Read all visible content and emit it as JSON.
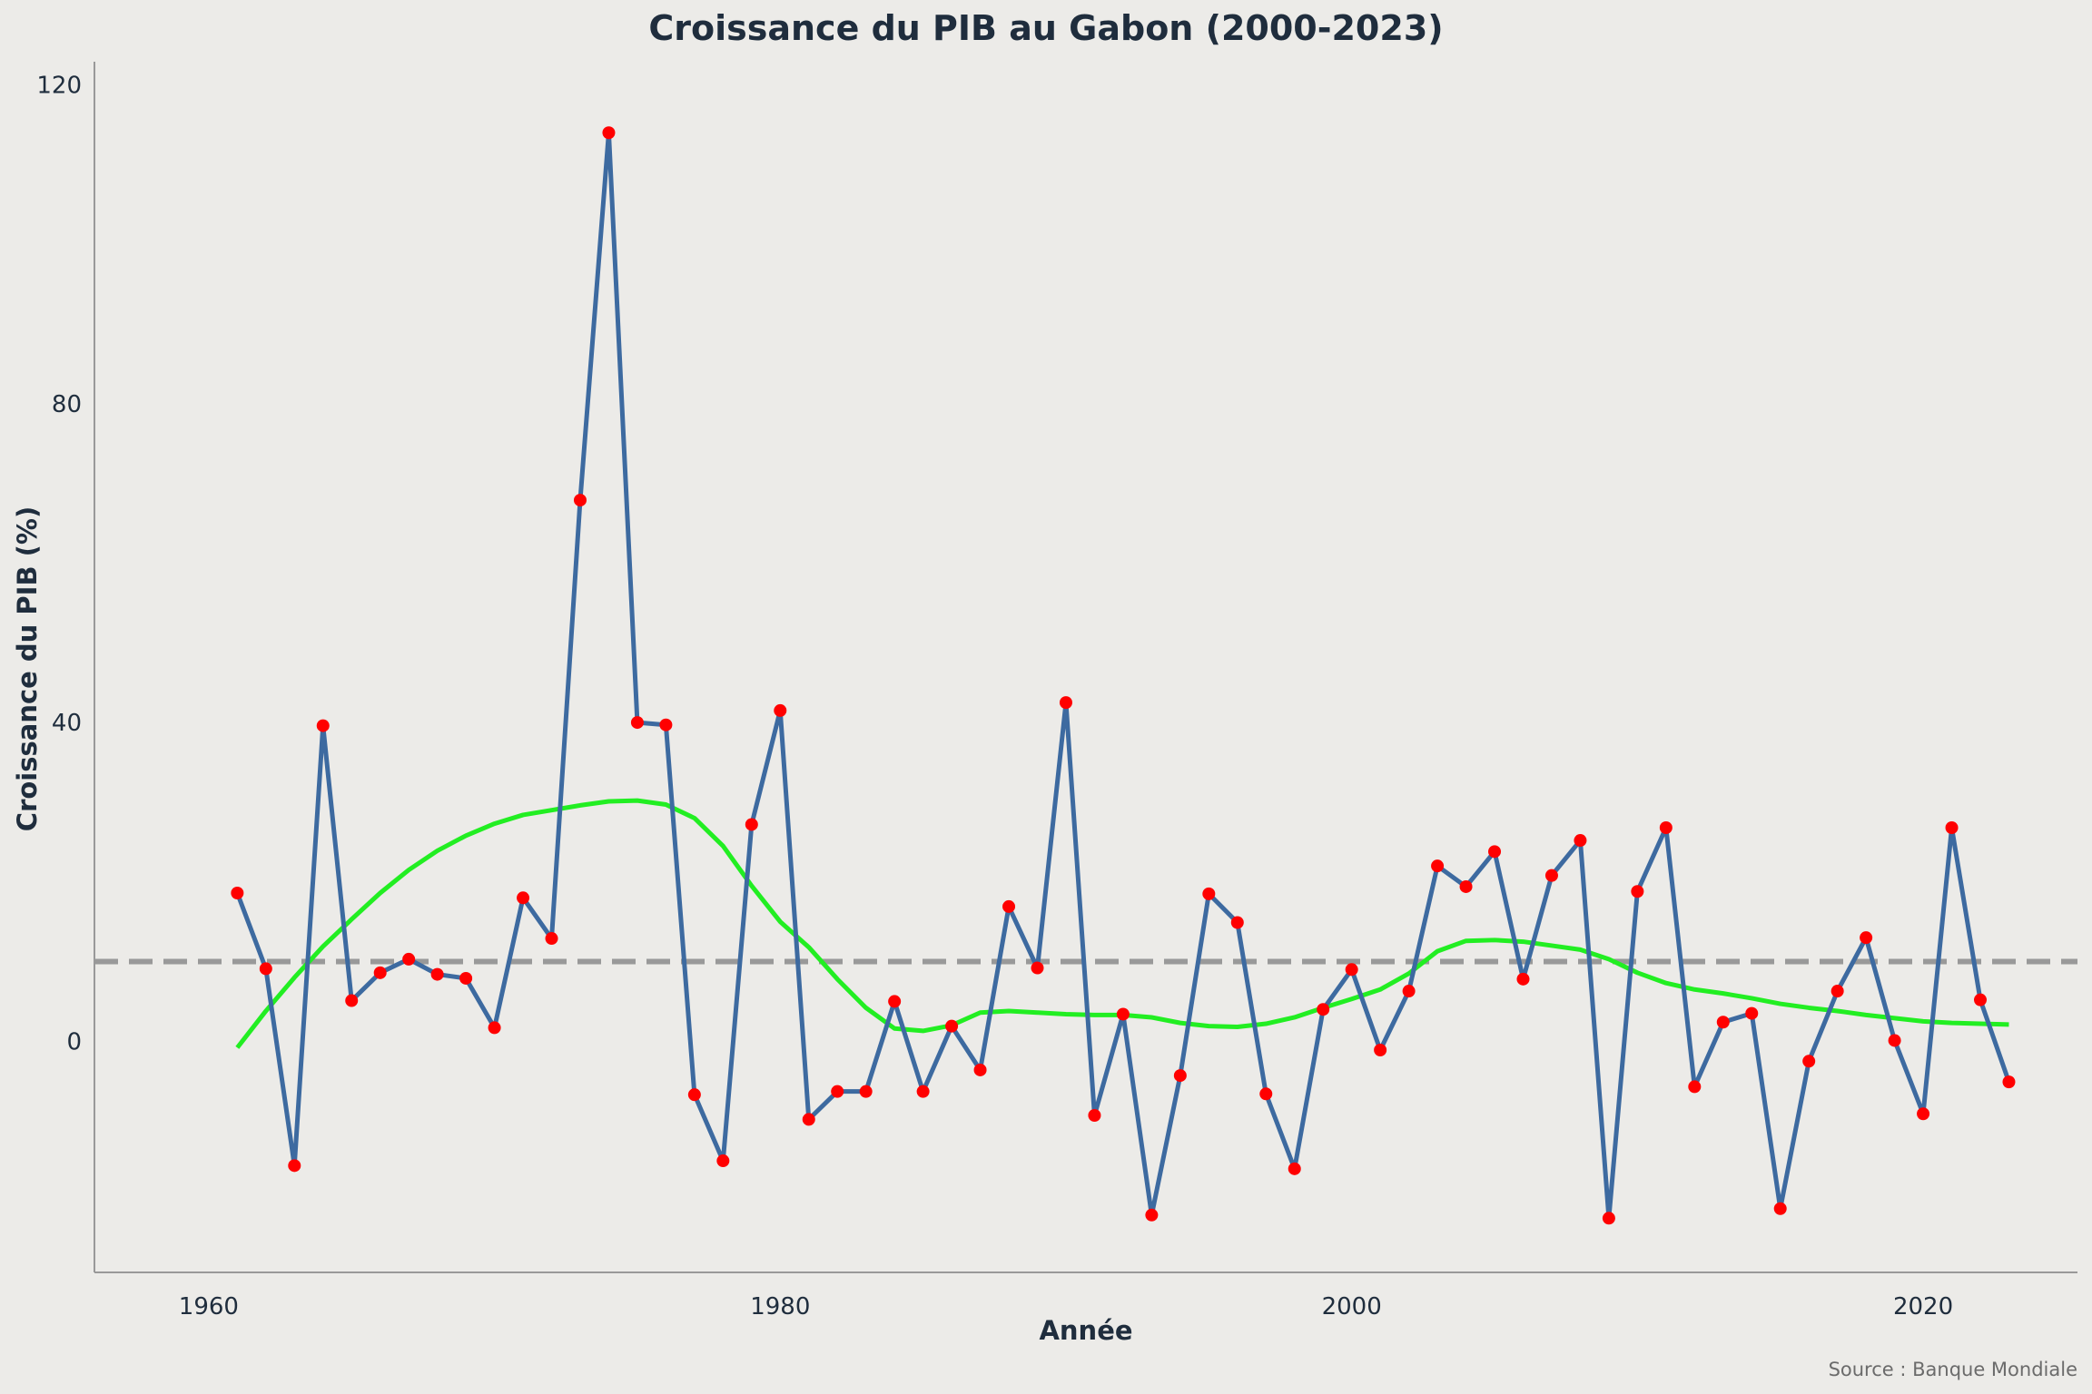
{
  "chart_data": {
    "type": "line",
    "title": "Croissance du PIB au Gabon (2000-2023)",
    "xlabel": "Année",
    "ylabel": "Croissance du PIB (%)",
    "caption": "Source : Banque Mondiale",
    "xlim": [
      1956,
      2025.4
    ],
    "ylim": [
      -29,
      122
    ],
    "x_ticks": [
      1960,
      1980,
      2000,
      2020
    ],
    "y_ticks": [
      0,
      40,
      80,
      120
    ],
    "grid": false,
    "colors": {
      "background": "#ecebe8",
      "line": "#3d6aa0",
      "points": "#ff0000",
      "trend": "#22ee22",
      "reference": "#999999",
      "axis": "#999999",
      "text": "#1f2d3d",
      "caption": "#6b6b6b"
    },
    "series": [
      {
        "x": [
          1961,
          1962,
          1963,
          1964,
          1965,
          1966,
          1967,
          1968,
          1969,
          1970,
          1971,
          1972,
          1973,
          1974,
          1975,
          1976,
          1977,
          1978,
          1979,
          1980,
          1981,
          1982,
          1983,
          1984,
          1985,
          1986,
          1987,
          1988,
          1989,
          1990,
          1991,
          1992,
          1993,
          1994,
          1995,
          1996,
          1997,
          1998,
          1999,
          2000,
          2001,
          2002,
          2003,
          2004,
          2005,
          2006,
          2007,
          2008,
          2009,
          2010,
          2011,
          2012,
          2013,
          2014,
          2015,
          2016,
          2017,
          2018,
          2019,
          2020,
          2021,
          2022,
          2023
        ],
        "y": [
          18.6,
          9.1,
          -15.6,
          39.6,
          5.1,
          8.6,
          10.3,
          8.4,
          7.9,
          1.7,
          18.0,
          12.9,
          67.9,
          114.0,
          40.0,
          39.7,
          -6.7,
          -15.0,
          27.2,
          41.5,
          -9.8,
          -6.3,
          -6.3,
          5.0,
          -6.3,
          1.9,
          -3.6,
          16.9,
          9.2,
          42.5,
          -9.3,
          3.4,
          -21.8,
          -4.3,
          18.5,
          14.9,
          -6.6,
          -16.0,
          4.0,
          9.0,
          -1.1,
          6.3,
          22.0,
          19.4,
          23.8,
          7.8,
          20.8,
          25.2,
          -22.2,
          18.8,
          26.8,
          -5.7,
          2.4,
          3.5,
          -21.0,
          -2.5,
          6.3,
          13.0,
          0.1,
          -9.1,
          26.8,
          5.2,
          -5.1
        ]
      },
      {
        "x": [
          1961,
          1962,
          1963,
          1964,
          1965,
          1966,
          1967,
          1968,
          1969,
          1970,
          1971,
          1972,
          1973,
          1974,
          1975,
          1976,
          1977,
          1978,
          1979,
          1980,
          1981,
          1982,
          1983,
          1984,
          1985,
          1986,
          1987,
          1988,
          1989,
          1990,
          1991,
          1992,
          1993,
          1994,
          1995,
          1996,
          1997,
          1998,
          1999,
          2000,
          2001,
          2002,
          2003,
          2004,
          2005,
          2006,
          2007,
          2008,
          2009,
          2010,
          2011,
          2012,
          2013,
          2014,
          2015,
          2016,
          2017,
          2018,
          2019,
          2020,
          2021,
          2022,
          2023
        ],
        "y": [
          -0.8,
          3.8,
          8.0,
          11.9,
          15.3,
          18.6,
          21.5,
          23.9,
          25.8,
          27.3,
          28.4,
          29.0,
          29.6,
          30.1,
          30.2,
          29.7,
          28.0,
          24.5,
          19.5,
          15.0,
          11.8,
          7.8,
          4.2,
          1.6,
          1.3,
          2.0,
          3.6,
          3.8,
          3.6,
          3.4,
          3.3,
          3.3,
          3.0,
          2.3,
          1.9,
          1.8,
          2.2,
          3.0,
          4.2,
          5.3,
          6.5,
          8.5,
          11.3,
          12.6,
          12.7,
          12.5,
          12.0,
          11.5,
          10.3,
          8.6,
          7.3,
          6.5,
          6.0,
          5.4,
          4.7,
          4.2,
          3.8,
          3.3,
          2.9,
          2.5,
          2.3,
          2.2,
          2.1
        ]
      }
    ],
    "reference_line_y": 10
  }
}
